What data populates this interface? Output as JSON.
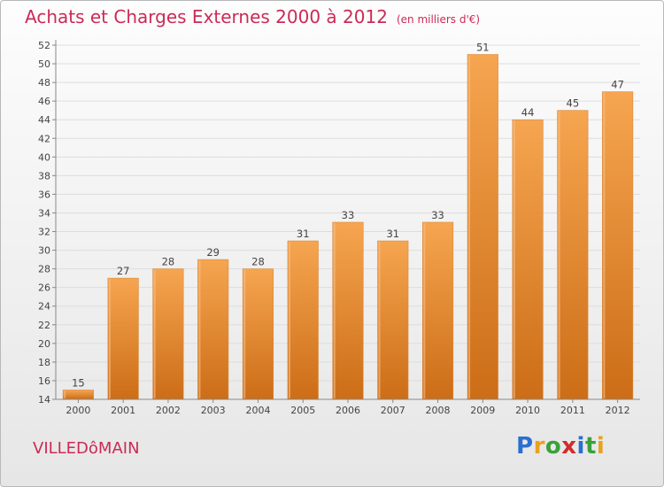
{
  "header": {
    "title": "Achats et Charges Externes 2000 à 2012",
    "unit": "(en milliers d'€)"
  },
  "footer": {
    "place": "VILLEDôMAIN",
    "logo_text": "Proxiti",
    "logo_letters": [
      {
        "char": "P",
        "color": "#2a6fd1"
      },
      {
        "char": "r",
        "color": "#e8a21f"
      },
      {
        "char": "o",
        "color": "#3aa13a"
      },
      {
        "char": "x",
        "color": "#d42a2a"
      },
      {
        "char": "i",
        "color": "#2a6fd1"
      },
      {
        "char": "t",
        "color": "#3aa13a"
      },
      {
        "char": "i",
        "color": "#e8a21f"
      }
    ]
  },
  "chart_data": {
    "type": "bar",
    "title": "Achats et Charges Externes 2000 à 2012",
    "subtitle": "(en milliers d'€)",
    "categories": [
      "2000",
      "2001",
      "2002",
      "2003",
      "2004",
      "2005",
      "2006",
      "2007",
      "2008",
      "2009",
      "2010",
      "2011",
      "2012"
    ],
    "values": [
      15,
      27,
      28,
      29,
      28,
      31,
      33,
      31,
      33,
      51,
      44,
      45,
      47
    ],
    "ylim": [
      14,
      52
    ],
    "yticks": [
      14,
      16,
      18,
      20,
      22,
      24,
      26,
      28,
      30,
      32,
      34,
      36,
      38,
      40,
      42,
      44,
      46,
      48,
      50,
      52
    ],
    "grid": true,
    "bar_color_top": "#f6a550",
    "bar_color_bottom": "#cc6d17",
    "grid_color": "#dddddd"
  }
}
